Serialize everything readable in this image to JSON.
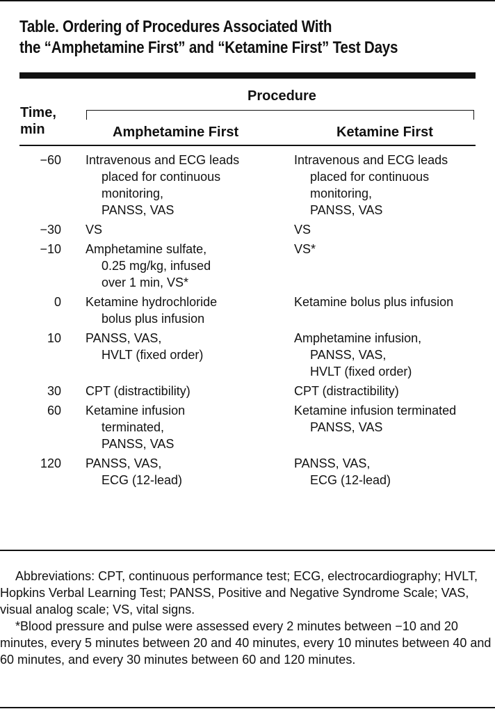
{
  "title_lines": [
    "Table. Ordering of Procedures Associated With",
    "the “Amphetamine First” and “Ketamine First” Test Days"
  ],
  "header": {
    "time_lines": [
      "Time,",
      "min"
    ],
    "procedure": "Procedure",
    "col_a": "Amphetamine First",
    "col_b": "Ketamine First"
  },
  "rows": [
    {
      "time": "−60",
      "a": [
        "Intravenous and ECG leads",
        "placed for continuous",
        "monitoring,",
        "PANSS, VAS"
      ],
      "b": [
        "Intravenous and ECG leads",
        "placed for continuous",
        "monitoring,",
        "PANSS, VAS"
      ]
    },
    {
      "time": "−30",
      "a": [
        "VS"
      ],
      "b": [
        "VS"
      ]
    },
    {
      "time": "−10",
      "a": [
        "Amphetamine sulfate,",
        "0.25 mg/kg, infused",
        "over 1 min, VS*"
      ],
      "b": [
        "VS*"
      ]
    },
    {
      "time": "0",
      "a": [
        "Ketamine hydrochloride",
        "bolus plus infusion"
      ],
      "b": [
        "Ketamine bolus plus infusion"
      ]
    },
    {
      "time": "10",
      "a": [
        "PANSS, VAS,",
        "HVLT (fixed order)"
      ],
      "b": [
        "Amphetamine infusion,",
        "PANSS, VAS,",
        "HVLT (fixed order)"
      ]
    },
    {
      "time": "30",
      "a": [
        "CPT (distractibility)"
      ],
      "b": [
        "CPT (distractibility)"
      ]
    },
    {
      "time": "60",
      "a": [
        "Ketamine infusion",
        "terminated,",
        "PANSS, VAS"
      ],
      "b": [
        "Ketamine infusion terminated",
        "PANSS, VAS"
      ]
    },
    {
      "time": "120",
      "a": [
        "PANSS, VAS,",
        "ECG (12-lead)"
      ],
      "b": [
        "PANSS, VAS,",
        "ECG (12-lead)"
      ]
    }
  ],
  "footnotes": [
    "Abbreviations: CPT, continuous performance test; ECG, electrocardiography; HVLT, Hopkins Verbal Learning Test; PANSS, Positive and Negative Syndrome Scale; VAS, visual analog scale; VS, vital signs.",
    "*Blood pressure and pulse were assessed every 2 minutes between −10 and 20 minutes, every 5 minutes between 20 and 40 minutes, every 10 minutes between 40 and 60 minutes, and every 30 minutes between 60 and 120 minutes."
  ]
}
